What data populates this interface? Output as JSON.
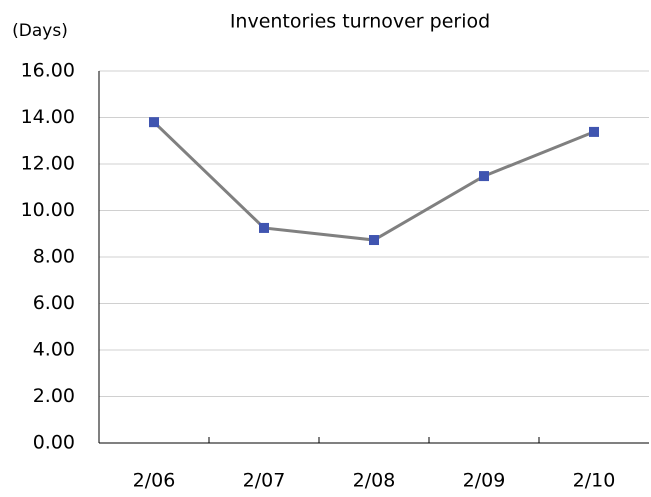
{
  "chart_data": {
    "type": "line",
    "title": "Inventories turnover period",
    "ylabel": "(Days)",
    "categories": [
      "2/06",
      "2/07",
      "2/08",
      "2/09",
      "2/10"
    ],
    "values": [
      13.8,
      9.25,
      8.73,
      11.48,
      13.38
    ],
    "line_color": "#808080",
    "marker_color": "#4055b0",
    "ylim": [
      0,
      16
    ],
    "yticks": [
      {
        "value": 0,
        "label": "0.00"
      },
      {
        "value": 2,
        "label": "2.00"
      },
      {
        "value": 4,
        "label": "4.00"
      },
      {
        "value": 6,
        "label": "6.00"
      },
      {
        "value": 8,
        "label": "8.00"
      },
      {
        "value": 10,
        "label": "10.00"
      },
      {
        "value": 12,
        "label": "12.00"
      },
      {
        "value": 14,
        "label": "14.00"
      },
      {
        "value": 16,
        "label": "16.00"
      }
    ],
    "grid": true
  }
}
